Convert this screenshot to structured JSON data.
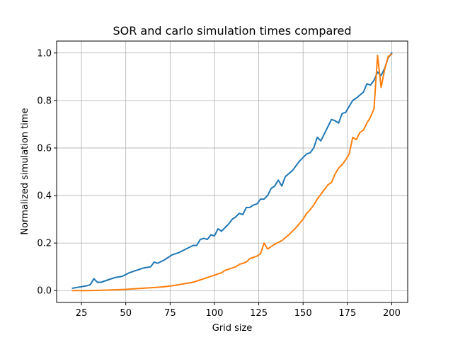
{
  "chart_data": {
    "type": "line",
    "title": "SOR and carlo simulation times compared",
    "xlabel": "Grid size",
    "ylabel": "Normalized simulation time",
    "xlim": [
      11,
      209
    ],
    "ylim": [
      -0.05,
      1.05
    ],
    "grid": true,
    "x_ticks": [
      25,
      50,
      75,
      100,
      125,
      150,
      175,
      200
    ],
    "x_tick_labels": [
      "25",
      "50",
      "75",
      "100",
      "125",
      "150",
      "175",
      "200"
    ],
    "y_ticks": [
      0.0,
      0.2,
      0.4,
      0.6,
      0.8,
      1.0
    ],
    "y_tick_labels": [
      "0.0",
      "0.2",
      "0.4",
      "0.6",
      "0.8",
      "1.0"
    ],
    "series": [
      {
        "color": "#1f77b4",
        "x": [
          20,
          24,
          28,
          30,
          32,
          34,
          36,
          40,
          44,
          48,
          52,
          56,
          60,
          64,
          66,
          68,
          72,
          76,
          80,
          84,
          88,
          90,
          92,
          94,
          96,
          98,
          100,
          102,
          104,
          108,
          110,
          112,
          114,
          116,
          118,
          120,
          122,
          124,
          126,
          128,
          130,
          132,
          134,
          136,
          138,
          140,
          144,
          148,
          152,
          154,
          156,
          158,
          160,
          164,
          166,
          168,
          170,
          172,
          174,
          178,
          180,
          184,
          186,
          188,
          190,
          192,
          194,
          196,
          198,
          200
        ],
        "y": [
          0.01,
          0.015,
          0.02,
          0.025,
          0.05,
          0.035,
          0.035,
          0.045,
          0.055,
          0.06,
          0.075,
          0.085,
          0.095,
          0.1,
          0.12,
          0.115,
          0.13,
          0.15,
          0.16,
          0.175,
          0.19,
          0.19,
          0.215,
          0.22,
          0.215,
          0.235,
          0.23,
          0.26,
          0.25,
          0.28,
          0.3,
          0.31,
          0.325,
          0.32,
          0.35,
          0.35,
          0.36,
          0.365,
          0.385,
          0.385,
          0.4,
          0.43,
          0.44,
          0.465,
          0.44,
          0.48,
          0.505,
          0.545,
          0.575,
          0.58,
          0.6,
          0.645,
          0.63,
          0.69,
          0.72,
          0.715,
          0.705,
          0.745,
          0.75,
          0.8,
          0.81,
          0.835,
          0.87,
          0.865,
          0.885,
          0.92,
          0.905,
          0.935,
          0.98,
          1.0
        ]
      },
      {
        "color": "#ff7f0e",
        "x": [
          20,
          30,
          40,
          50,
          60,
          70,
          76,
          80,
          84,
          88,
          92,
          96,
          100,
          104,
          106,
          108,
          112,
          114,
          116,
          118,
          120,
          122,
          124,
          126,
          128,
          130,
          134,
          138,
          142,
          146,
          150,
          152,
          154,
          156,
          158,
          160,
          162,
          164,
          166,
          168,
          170,
          172,
          174,
          176,
          178,
          180,
          182,
          184,
          186,
          188,
          190,
          192,
          194,
          196,
          198,
          200
        ],
        "y": [
          0.0,
          0.0,
          0.002,
          0.005,
          0.01,
          0.015,
          0.02,
          0.025,
          0.03,
          0.035,
          0.045,
          0.055,
          0.065,
          0.075,
          0.085,
          0.09,
          0.1,
          0.11,
          0.115,
          0.12,
          0.135,
          0.14,
          0.145,
          0.155,
          0.2,
          0.175,
          0.195,
          0.21,
          0.235,
          0.265,
          0.3,
          0.325,
          0.34,
          0.36,
          0.385,
          0.405,
          0.425,
          0.445,
          0.455,
          0.49,
          0.515,
          0.53,
          0.55,
          0.575,
          0.645,
          0.635,
          0.665,
          0.675,
          0.705,
          0.73,
          0.765,
          0.99,
          0.855,
          0.93,
          0.985,
          0.995
        ]
      }
    ]
  }
}
